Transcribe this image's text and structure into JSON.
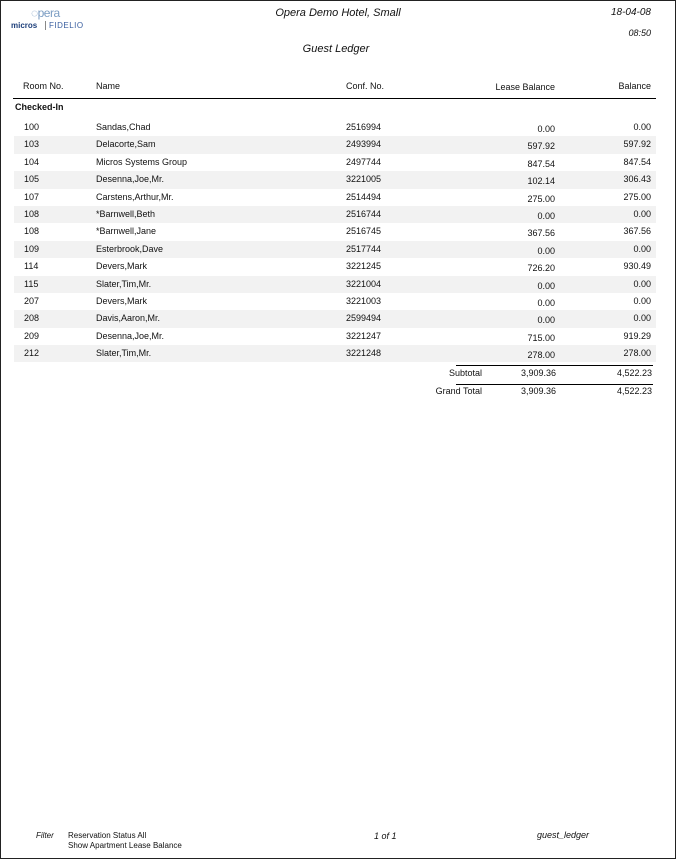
{
  "logo": {
    "brand": "Opera",
    "vendor": "MICROS FIDELIO"
  },
  "header": {
    "hotel": "Opera Demo Hotel, Small",
    "date": "18-04-08",
    "time": "08:50",
    "report_title": "Guest Ledger"
  },
  "columns": {
    "room": "Room No.",
    "name": "Name",
    "conf": "Conf. No.",
    "lease": "Lease Balance",
    "balance": "Balance"
  },
  "section": "Checked-In",
  "rows": [
    {
      "room": "100",
      "name": "Sandas,Chad",
      "conf": "2516994",
      "lease": "0.00",
      "balance": "0.00"
    },
    {
      "room": "103",
      "name": "Delacorte,Sam",
      "conf": "2493994",
      "lease": "597.92",
      "balance": "597.92"
    },
    {
      "room": "104",
      "name": "Micros Systems Group",
      "conf": "2497744",
      "lease": "847.54",
      "balance": "847.54"
    },
    {
      "room": "105",
      "name": "Desenna,Joe,Mr.",
      "conf": "3221005",
      "lease": "102.14",
      "balance": "306.43"
    },
    {
      "room": "107",
      "name": "Carstens,Arthur,Mr.",
      "conf": "2514494",
      "lease": "275.00",
      "balance": "275.00"
    },
    {
      "room": "108",
      "name": "*Barnwell,Beth",
      "conf": "2516744",
      "lease": "0.00",
      "balance": "0.00"
    },
    {
      "room": "108",
      "name": "*Barnwell,Jane",
      "conf": "2516745",
      "lease": "367.56",
      "balance": "367.56"
    },
    {
      "room": "109",
      "name": "Esterbrook,Dave",
      "conf": "2517744",
      "lease": "0.00",
      "balance": "0.00"
    },
    {
      "room": "114",
      "name": "Devers,Mark",
      "conf": "3221245",
      "lease": "726.20",
      "balance": "930.49"
    },
    {
      "room": "115",
      "name": "Slater,Tim,Mr.",
      "conf": "3221004",
      "lease": "0.00",
      "balance": "0.00"
    },
    {
      "room": "207",
      "name": "Devers,Mark",
      "conf": "3221003",
      "lease": "0.00",
      "balance": "0.00"
    },
    {
      "room": "208",
      "name": "Davis,Aaron,Mr.",
      "conf": "2599494",
      "lease": "0.00",
      "balance": "0.00"
    },
    {
      "room": "209",
      "name": "Desenna,Joe,Mr.",
      "conf": "3221247",
      "lease": "715.00",
      "balance": "919.29"
    },
    {
      "room": "212",
      "name": "Slater,Tim,Mr.",
      "conf": "3221248",
      "lease": "278.00",
      "balance": "278.00"
    }
  ],
  "subtotal": {
    "label": "Subtotal",
    "lease": "3,909.36",
    "balance": "4,522.23"
  },
  "grand_total": {
    "label": "Grand Total",
    "lease": "3,909.36",
    "balance": "4,522.23"
  },
  "footer": {
    "filter_label": "Filter",
    "filter_lines": [
      "Reservation Status All",
      "Show Apartment Lease Balance"
    ],
    "page": "1 of 1",
    "report_name": "guest_ledger"
  },
  "colors": {
    "row_shade": "#f2f2f2",
    "logo_blue": "#1d3f7a"
  }
}
